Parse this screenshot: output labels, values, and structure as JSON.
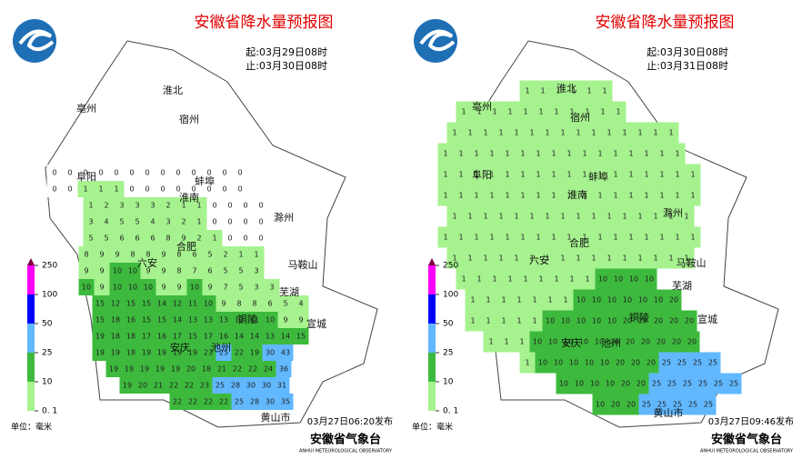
{
  "panels": [
    {
      "title": "安徽省降水量预报图",
      "start": "起:03月29日08时",
      "end": "止:03月30日08时",
      "issued": "03月27日06:20发布",
      "rows": [
        [
          0,
          0,
          0,
          0,
          0,
          0,
          0,
          0,
          0,
          0,
          0,
          0,
          0
        ],
        [
          0,
          0,
          1,
          1,
          1,
          0,
          0,
          0,
          0,
          0,
          0,
          0,
          0
        ],
        [
          1,
          2,
          3,
          3,
          3,
          2,
          1,
          1,
          0,
          0,
          0,
          0
        ],
        [
          3,
          4,
          5,
          5,
          4,
          3,
          2,
          1,
          0,
          0,
          0,
          0
        ],
        [
          5,
          5,
          6,
          6,
          6,
          8,
          9,
          2,
          1,
          0,
          0,
          0
        ],
        [
          8,
          9,
          9,
          8,
          8,
          9,
          8,
          6,
          5,
          2,
          1,
          1
        ],
        [
          9,
          9,
          10,
          10,
          9,
          9,
          8,
          7,
          6,
          5,
          5,
          3
        ],
        [
          10,
          9,
          10,
          10,
          10,
          9,
          9,
          10,
          9,
          7,
          5,
          3,
          3
        ],
        [
          15,
          12,
          15,
          15,
          14,
          12,
          11,
          10,
          9,
          8,
          8,
          6,
          5,
          4
        ],
        [
          15,
          18,
          16,
          15,
          15,
          14,
          13,
          13,
          13,
          12,
          11,
          10,
          9,
          9
        ],
        [
          19,
          18,
          18,
          17,
          16,
          17,
          15,
          17,
          16,
          14,
          14,
          13,
          14,
          15
        ],
        [
          19,
          19,
          18,
          19,
          19,
          19,
          19,
          23,
          25,
          22,
          19,
          30,
          43
        ],
        [
          19,
          19,
          19,
          19,
          19,
          20,
          18,
          21,
          22,
          22,
          24,
          36
        ],
        [
          19,
          20,
          21,
          22,
          22,
          23,
          25,
          28,
          30,
          30,
          31
        ],
        [
          22,
          22,
          22,
          22,
          25,
          28,
          30,
          35
        ]
      ]
    },
    {
      "title": "安徽省降水量预报图",
      "start": "起:03月30日08时",
      "end": "止:03月31日08时",
      "issued": "03月27日09:46发布",
      "rows": [
        [
          1,
          1,
          1,
          1,
          1,
          1
        ],
        [
          1,
          1,
          1,
          1,
          1,
          1,
          1,
          1,
          1,
          1,
          1
        ],
        [
          1,
          1,
          1,
          1,
          1,
          1,
          1,
          1,
          1,
          1,
          1,
          1,
          1,
          1,
          1
        ],
        [
          1,
          1,
          1,
          1,
          1,
          1,
          1,
          1,
          1,
          1,
          1,
          1,
          1,
          1,
          1,
          1
        ],
        [
          1,
          1,
          1,
          1,
          1,
          1,
          1,
          1,
          1,
          1,
          1,
          1,
          1,
          1,
          1,
          1,
          1
        ],
        [
          1,
          1,
          1,
          1,
          1,
          1,
          1,
          1,
          1,
          1,
          1,
          1,
          1,
          1,
          1,
          1,
          1
        ],
        [
          1,
          1,
          1,
          1,
          1,
          1,
          1,
          1,
          1,
          1,
          1,
          1,
          1,
          1,
          1,
          1
        ],
        [
          1,
          1,
          1,
          1,
          1,
          1,
          1,
          1,
          1,
          1,
          1,
          1,
          1,
          1,
          1,
          1,
          1
        ],
        [
          1,
          1,
          1,
          1,
          1,
          1,
          1,
          1,
          1,
          1,
          1,
          1,
          1,
          1,
          1,
          1
        ],
        [
          1,
          1,
          1,
          1,
          1,
          1,
          1,
          1,
          1,
          10,
          10,
          10,
          10
        ],
        [
          1,
          1,
          1,
          1,
          1,
          1,
          1,
          10,
          10,
          10,
          10,
          10,
          10,
          20
        ],
        [
          1,
          1,
          1,
          1,
          1,
          10,
          10,
          10,
          10,
          10,
          20,
          20,
          20,
          20,
          20
        ],
        [
          1,
          1,
          1,
          10,
          10,
          10,
          10,
          10,
          20,
          20,
          20,
          20,
          20,
          20
        ],
        [
          1,
          10,
          10,
          10,
          10,
          10,
          20,
          20,
          20,
          25,
          25,
          25,
          25
        ],
        [
          10,
          10,
          10,
          10,
          20,
          20,
          25,
          25,
          25,
          25,
          25,
          25
        ],
        [
          10,
          20,
          20,
          25,
          25,
          25,
          25,
          25
        ]
      ]
    }
  ],
  "cities": [
    "亳州",
    "淮北",
    "宿州",
    "阜阳",
    "蚌埠",
    "淮南",
    "滁州",
    "六安",
    "合肥",
    "马鞍山",
    "芜湖",
    "铜陵",
    "宣城",
    "安庆",
    "池州",
    "黄山市"
  ],
  "legend": {
    "levels": [
      {
        "value": 0.1,
        "label": "0. 1"
      },
      10,
      25,
      50,
      100,
      250
    ],
    "colors": [
      "#a6f28f",
      "#3dba3d",
      "#61b8ff",
      "#0000fe",
      "#fa00fa",
      "#800040"
    ],
    "unit": "单位：毫米"
  },
  "agency": "安徽省气象台",
  "agency_en": "ANHUI METEOROLOGICAL OBSERVATORY"
}
